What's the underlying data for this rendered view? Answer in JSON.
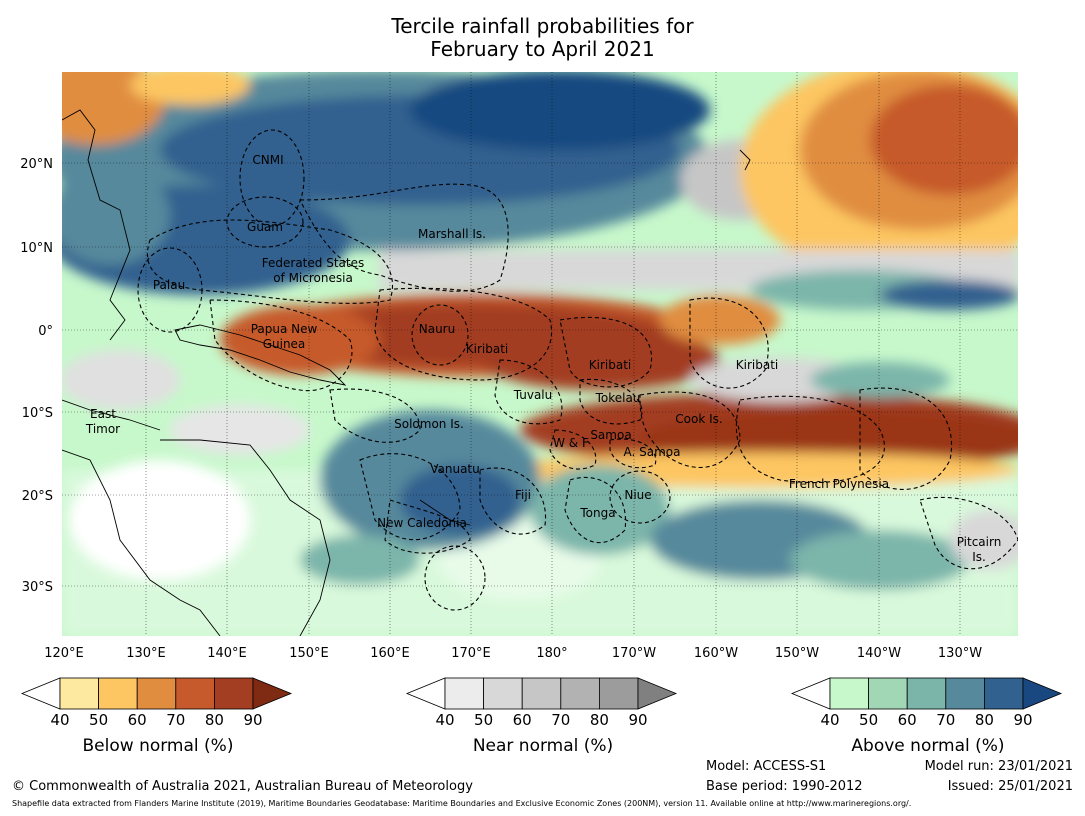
{
  "title": {
    "line1": "Tercile rainfall probabilities for",
    "line2": "February to April 2021"
  },
  "map": {
    "lon_labels": [
      "120°E",
      "130°E",
      "140°E",
      "150°E",
      "160°E",
      "170°E",
      "180°",
      "170°W",
      "160°W",
      "150°W",
      "140°W",
      "130°W"
    ],
    "lat_labels": [
      "20°N",
      "10°N",
      "0°",
      "10°S",
      "20°S",
      "30°S"
    ],
    "regions": [
      {
        "name": "CNMI"
      },
      {
        "name": "Guam"
      },
      {
        "name": "Marshall Is."
      },
      {
        "name": "Federated States"
      },
      {
        "name": "of Micronesia"
      },
      {
        "name": "Palau"
      },
      {
        "name": "Papua New"
      },
      {
        "name": "Guinea"
      },
      {
        "name": "Nauru"
      },
      {
        "name": "Kiribati"
      },
      {
        "name": "Kiribati"
      },
      {
        "name": "Kiribati"
      },
      {
        "name": "Tuvalu"
      },
      {
        "name": "Tokelau"
      },
      {
        "name": "Cook Is."
      },
      {
        "name": "East"
      },
      {
        "name": "Timor"
      },
      {
        "name": "Solomon Is."
      },
      {
        "name": "W & F"
      },
      {
        "name": "Samoa"
      },
      {
        "name": "A. Samoa"
      },
      {
        "name": "Vanuatu"
      },
      {
        "name": "Fiji"
      },
      {
        "name": "Niue"
      },
      {
        "name": "French Polynesia"
      },
      {
        "name": "Tonga"
      },
      {
        "name": "New Caledonia"
      },
      {
        "name": "Pitcairn"
      },
      {
        "name": "Is."
      }
    ]
  },
  "colorbars": {
    "ticks": [
      "40",
      "50",
      "60",
      "70",
      "80",
      "90"
    ],
    "below": {
      "title": "Below normal (%)",
      "colors": [
        "#ffffff",
        "#fee9a0",
        "#fdc662",
        "#e08d3f",
        "#c65a2c",
        "#a33e22",
        "#7f2a13"
      ]
    },
    "near": {
      "title": "Near normal (%)",
      "colors": [
        "#ffffff",
        "#ececec",
        "#d8d8d8",
        "#c6c6c6",
        "#b2b2b2",
        "#9c9c9c",
        "#808080"
      ]
    },
    "above": {
      "title": "Above normal (%)",
      "colors": [
        "#ffffff",
        "#c7f8cb",
        "#a2d7b6",
        "#7bb5aa",
        "#56899c",
        "#30618f",
        "#194880"
      ]
    }
  },
  "footer": {
    "copyright": "© Commonwealth of Australia 2021, Australian Bureau of Meteorology",
    "model": "Model: ACCESS-S1",
    "base_period": "Base period: 1990-2012",
    "model_run": "Model run: 23/01/2021",
    "issued": "Issued: 25/01/2021",
    "shapefile": "Shapefile data extracted from Flanders Marine Institute (2019), Maritime Boundaries Geodatabase: Maritime Boundaries and Exclusive Economic Zones (200NM), version 11. Available online at http://www.marineregions.org/."
  }
}
